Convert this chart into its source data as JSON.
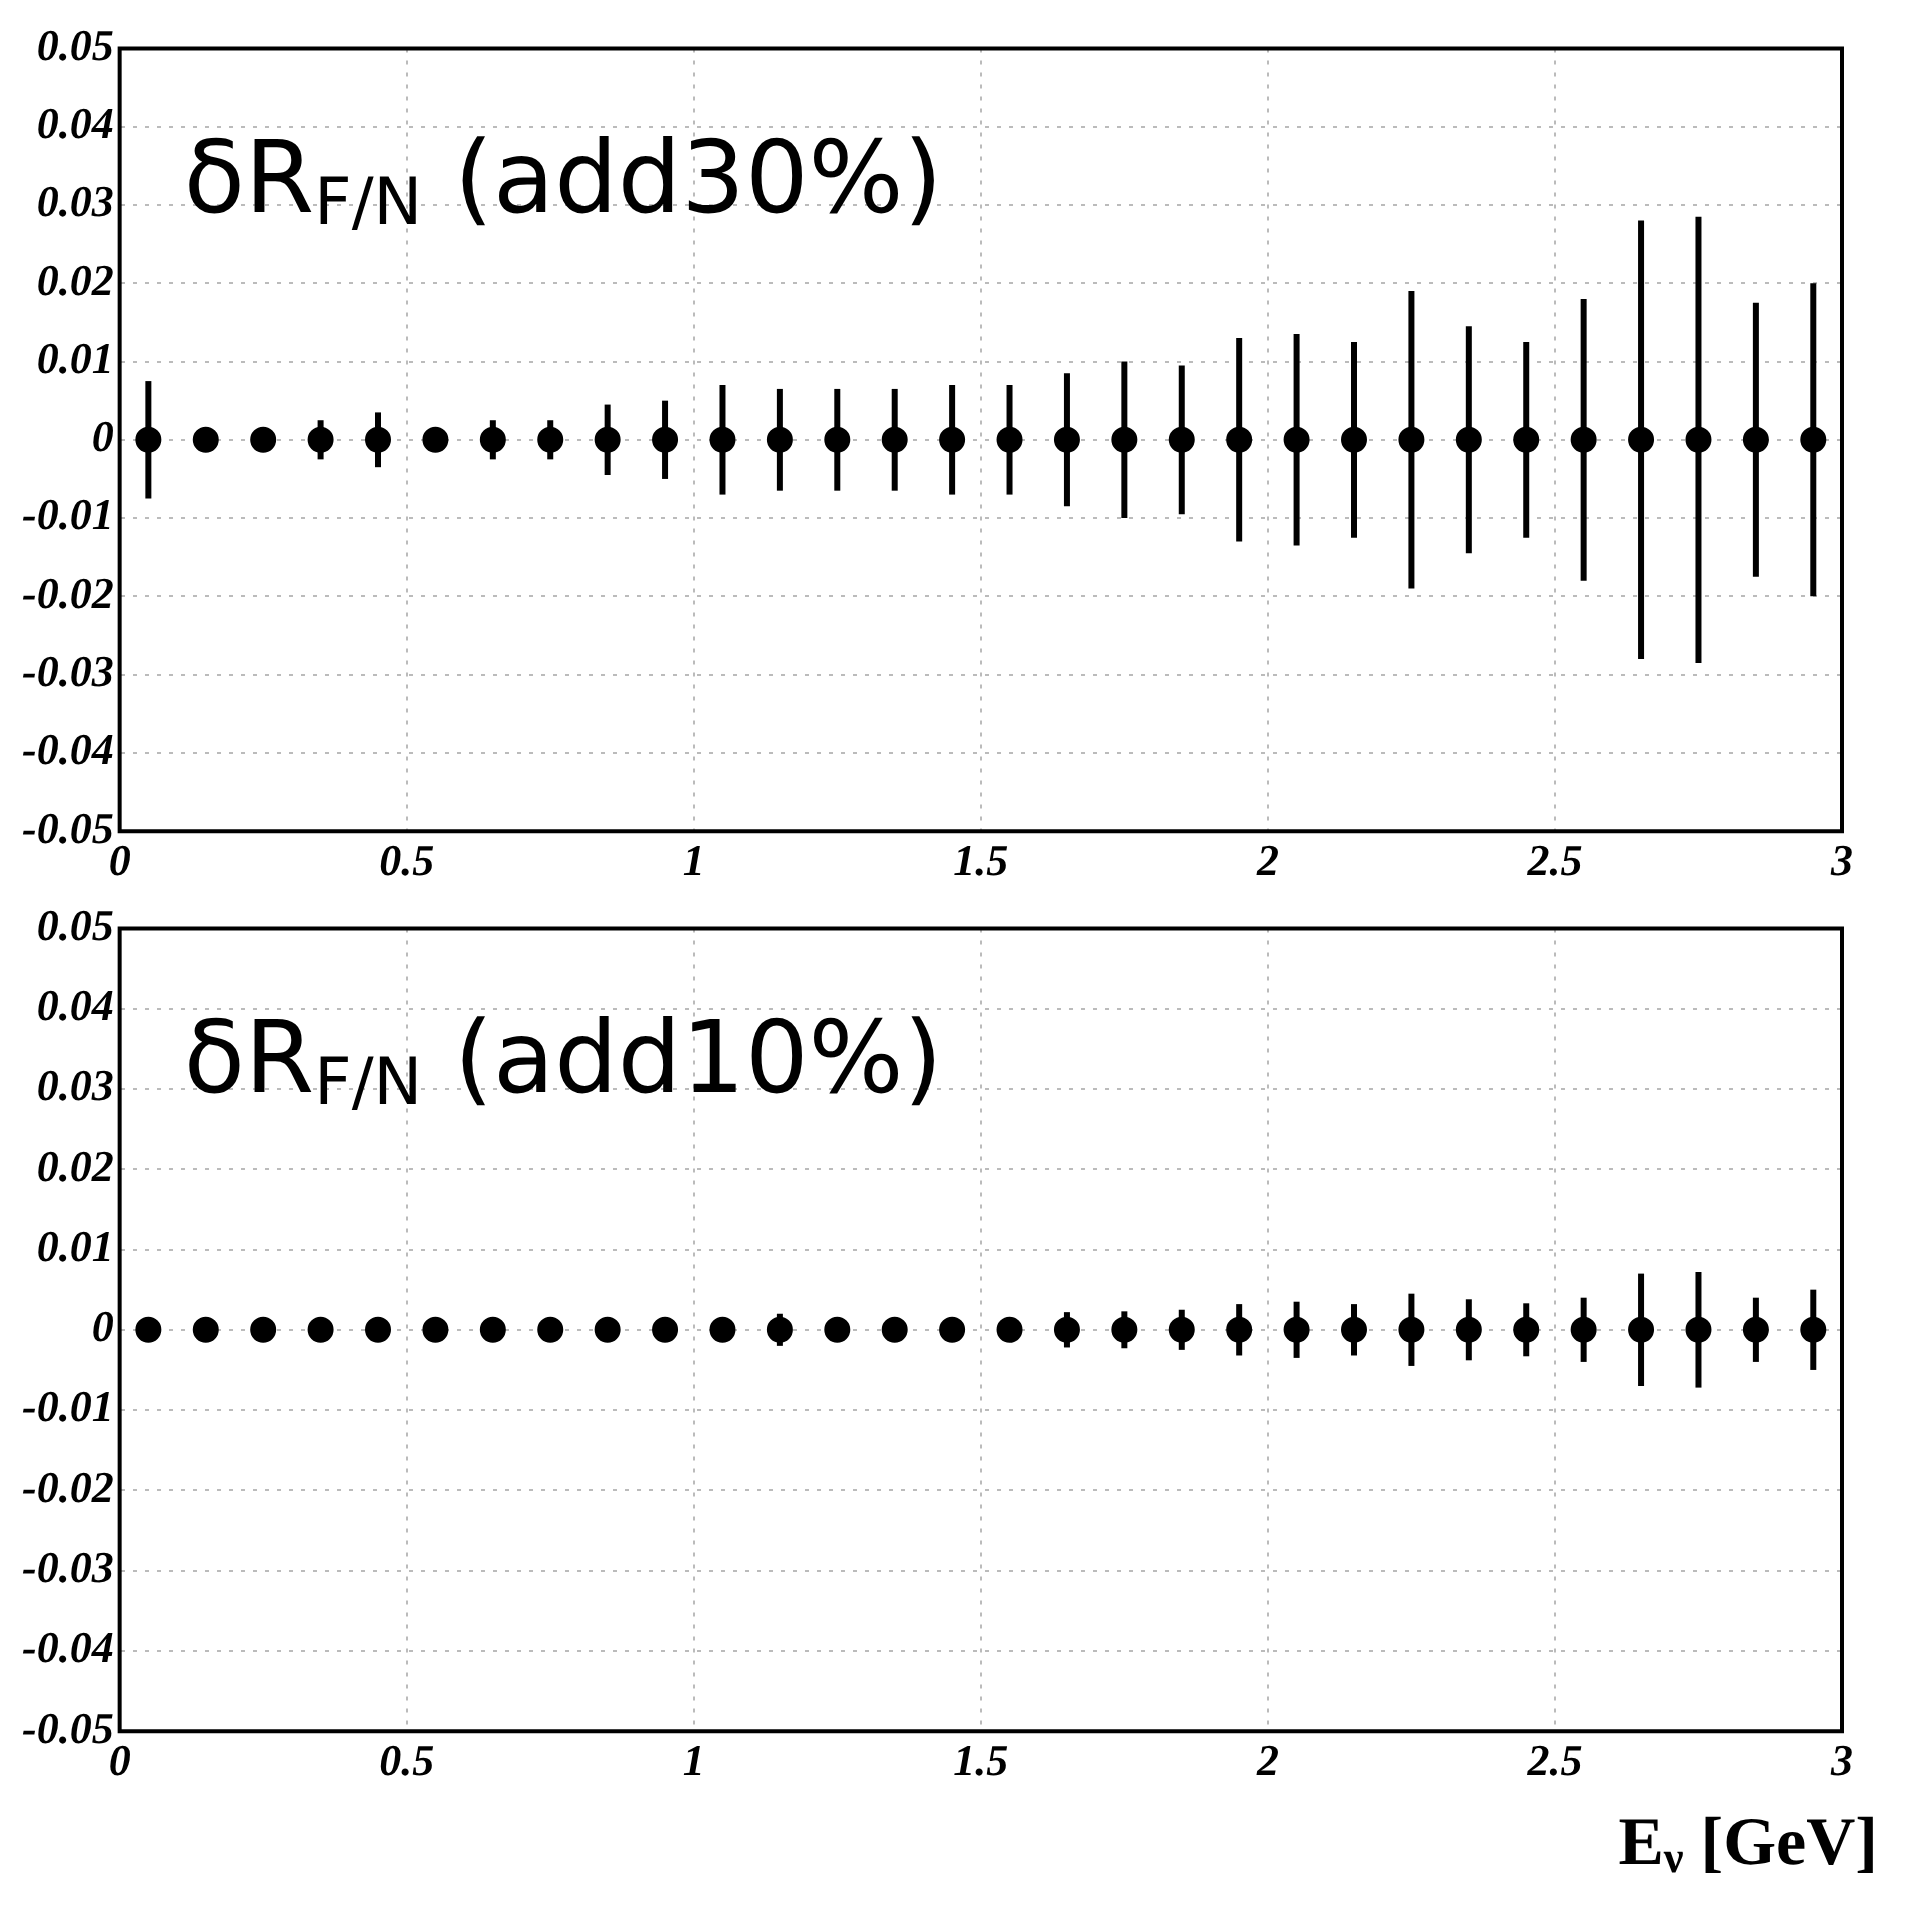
{
  "chart_data": [
    {
      "type": "scatter",
      "title": "δR$_{F/N}$ (add30%)",
      "marker": "circle",
      "grid": true,
      "xlim": [
        0,
        3
      ],
      "xticks": [
        0,
        0.5,
        1,
        1.5,
        2,
        2.5,
        3
      ],
      "ylim": [
        -0.05,
        0.05
      ],
      "yticks": [
        -0.05,
        -0.04,
        -0.03,
        -0.02,
        -0.01,
        0,
        0.01,
        0.02,
        0.03,
        0.04,
        0.05
      ],
      "x": [
        0.05,
        0.15,
        0.25,
        0.35,
        0.45,
        0.55,
        0.65,
        0.75,
        0.85,
        0.95,
        1.05,
        1.15,
        1.25,
        1.35,
        1.45,
        1.55,
        1.65,
        1.75,
        1.85,
        1.95,
        2.05,
        2.15,
        2.25,
        2.35,
        2.45,
        2.55,
        2.65,
        2.75,
        2.85,
        2.95
      ],
      "series": [
        {
          "color": "#000000",
          "values": [
            0,
            0,
            0,
            0,
            0,
            0,
            0,
            0,
            0,
            0,
            0,
            0,
            0,
            0,
            0,
            0,
            0,
            0,
            0,
            0,
            0,
            0,
            0,
            0,
            0,
            0,
            0,
            0,
            0,
            0
          ],
          "errors": [
            0.0075,
            0.001,
            null,
            0.0025,
            0.0035,
            0.001,
            0.0025,
            0.0025,
            0.0045,
            0.005,
            0.007,
            0.0065,
            0.0065,
            0.0065,
            0.007,
            0.007,
            0.0085,
            0.01,
            0.0095,
            0.013,
            0.0135,
            0.0125,
            0.019,
            0.0145,
            0.0125,
            0.018,
            0.028,
            0.0285,
            0.0175,
            0.02
          ]
        }
      ]
    },
    {
      "type": "scatter",
      "title": "δR$_{F/N}$ (add10%)",
      "xlabel": "E$_{ν}$ [GeV]",
      "marker": "circle",
      "grid": true,
      "xlim": [
        0,
        3
      ],
      "xticks": [
        0,
        0.5,
        1,
        1.5,
        2,
        2.5,
        3
      ],
      "ylim": [
        -0.05,
        0.05
      ],
      "yticks": [
        -0.05,
        -0.04,
        -0.03,
        -0.02,
        -0.01,
        0,
        0.01,
        0.02,
        0.03,
        0.04,
        0.05
      ],
      "x": [
        0.05,
        0.15,
        0.25,
        0.35,
        0.45,
        0.55,
        0.65,
        0.75,
        0.85,
        0.95,
        1.05,
        1.15,
        1.25,
        1.35,
        1.45,
        1.55,
        1.65,
        1.75,
        1.85,
        1.95,
        2.05,
        2.15,
        2.25,
        2.35,
        2.45,
        2.55,
        2.65,
        2.75,
        2.85,
        2.95
      ],
      "series": [
        {
          "color": "#000000",
          "values": [
            0,
            0,
            0,
            0,
            0,
            0,
            0,
            0,
            0,
            0,
            0,
            0,
            0,
            0,
            0,
            0,
            0,
            0,
            0,
            0,
            0,
            0,
            0,
            0,
            0,
            0,
            0,
            0,
            0,
            0
          ],
          "errors": [
            0.0005,
            null,
            null,
            null,
            null,
            null,
            null,
            null,
            0.0005,
            0.0005,
            0.0015,
            0.002,
            0.0015,
            0.0015,
            0.0015,
            0.0015,
            0.0022,
            0.0023,
            0.0025,
            0.0032,
            0.0035,
            0.0032,
            0.0045,
            0.0038,
            0.0033,
            0.004,
            0.007,
            0.0072,
            0.004,
            0.005
          ]
        }
      ]
    }
  ]
}
